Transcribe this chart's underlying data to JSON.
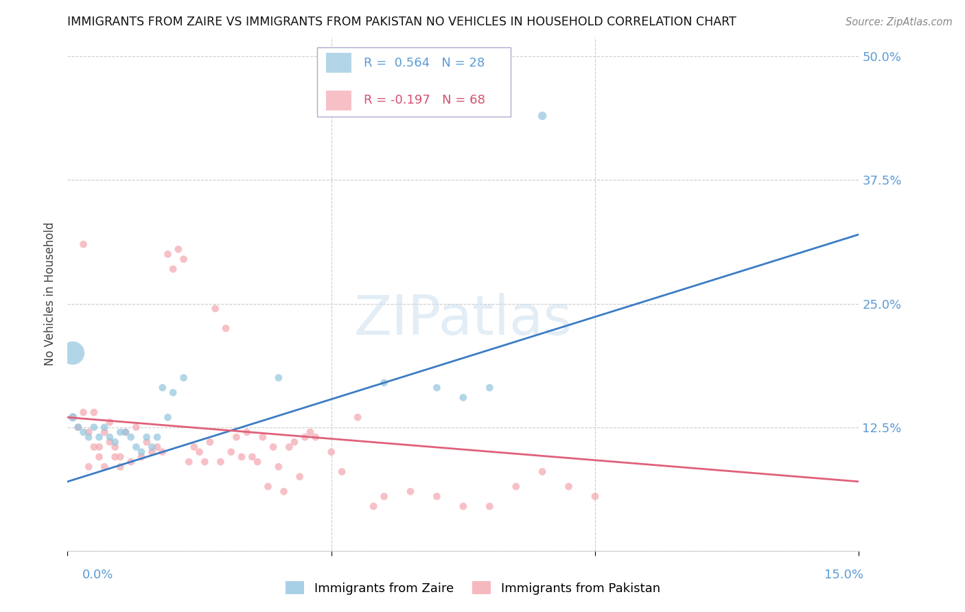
{
  "title": "IMMIGRANTS FROM ZAIRE VS IMMIGRANTS FROM PAKISTAN NO VEHICLES IN HOUSEHOLD CORRELATION CHART",
  "source": "Source: ZipAtlas.com",
  "ylabel": "No Vehicles in Household",
  "yticks": [
    0.0,
    0.125,
    0.25,
    0.375,
    0.5
  ],
  "ytick_labels": [
    "",
    "12.5%",
    "25.0%",
    "37.5%",
    "50.0%"
  ],
  "xlim": [
    0.0,
    0.15
  ],
  "ylim": [
    0.0,
    0.52
  ],
  "zaire_color": "#92c5de",
  "pakistan_color": "#f4a6b0",
  "zaire_line_color": "#3a7cc4",
  "pakistan_line_color": "#e0607a",
  "zaire_R": 0.564,
  "zaire_N": 28,
  "pakistan_R": -0.197,
  "pakistan_N": 68,
  "background_color": "#ffffff",
  "grid_color": "#cccccc",
  "axis_label_color": "#5b9bd5",
  "watermark_color": "#ccdff0",
  "zaire_x": [
    0.001,
    0.002,
    0.003,
    0.004,
    0.005,
    0.006,
    0.007,
    0.008,
    0.009,
    0.01,
    0.011,
    0.012,
    0.013,
    0.014,
    0.015,
    0.016,
    0.017,
    0.018,
    0.019,
    0.02,
    0.022,
    0.04,
    0.06,
    0.07,
    0.075,
    0.08,
    0.09,
    0.001
  ],
  "zaire_y": [
    0.135,
    0.125,
    0.12,
    0.115,
    0.125,
    0.115,
    0.125,
    0.115,
    0.11,
    0.12,
    0.12,
    0.115,
    0.105,
    0.1,
    0.115,
    0.105,
    0.115,
    0.165,
    0.135,
    0.16,
    0.175,
    0.175,
    0.17,
    0.165,
    0.155,
    0.165,
    0.44,
    0.2
  ],
  "zaire_sizes": [
    80,
    60,
    60,
    60,
    60,
    60,
    60,
    60,
    60,
    60,
    60,
    60,
    60,
    60,
    60,
    60,
    60,
    60,
    60,
    60,
    60,
    60,
    60,
    60,
    60,
    60,
    80,
    600
  ],
  "pakistan_x": [
    0.001,
    0.002,
    0.003,
    0.004,
    0.005,
    0.006,
    0.007,
    0.008,
    0.009,
    0.01,
    0.011,
    0.012,
    0.013,
    0.014,
    0.015,
    0.016,
    0.017,
    0.018,
    0.019,
    0.02,
    0.021,
    0.022,
    0.023,
    0.024,
    0.025,
    0.026,
    0.027,
    0.028,
    0.029,
    0.03,
    0.031,
    0.032,
    0.033,
    0.034,
    0.035,
    0.036,
    0.037,
    0.038,
    0.039,
    0.04,
    0.041,
    0.042,
    0.043,
    0.044,
    0.045,
    0.046,
    0.047,
    0.05,
    0.052,
    0.055,
    0.058,
    0.06,
    0.065,
    0.07,
    0.075,
    0.08,
    0.085,
    0.09,
    0.095,
    0.1,
    0.003,
    0.004,
    0.005,
    0.006,
    0.007,
    0.008,
    0.009,
    0.01
  ],
  "pakistan_y": [
    0.135,
    0.125,
    0.14,
    0.12,
    0.14,
    0.105,
    0.12,
    0.13,
    0.105,
    0.095,
    0.12,
    0.09,
    0.125,
    0.095,
    0.11,
    0.1,
    0.105,
    0.1,
    0.3,
    0.285,
    0.305,
    0.295,
    0.09,
    0.105,
    0.1,
    0.09,
    0.11,
    0.245,
    0.09,
    0.225,
    0.1,
    0.115,
    0.095,
    0.12,
    0.095,
    0.09,
    0.115,
    0.065,
    0.105,
    0.085,
    0.06,
    0.105,
    0.11,
    0.075,
    0.115,
    0.12,
    0.115,
    0.1,
    0.08,
    0.135,
    0.045,
    0.055,
    0.06,
    0.055,
    0.045,
    0.045,
    0.065,
    0.08,
    0.065,
    0.055,
    0.31,
    0.085,
    0.105,
    0.095,
    0.085,
    0.11,
    0.095,
    0.085
  ],
  "pakistan_sizes": [
    60,
    60,
    60,
    60,
    60,
    60,
    60,
    60,
    60,
    60,
    60,
    60,
    60,
    60,
    60,
    60,
    60,
    60,
    60,
    60,
    60,
    60,
    60,
    60,
    60,
    60,
    60,
    60,
    60,
    60,
    60,
    60,
    60,
    60,
    60,
    60,
    60,
    60,
    60,
    60,
    60,
    60,
    60,
    60,
    60,
    60,
    60,
    60,
    60,
    60,
    60,
    60,
    60,
    60,
    60,
    60,
    60,
    60,
    60,
    60,
    60,
    60,
    60,
    60,
    60,
    60,
    60,
    60
  ],
  "zaire_line_x0": 0.0,
  "zaire_line_y0": 0.07,
  "zaire_line_x1": 0.15,
  "zaire_line_y1": 0.32,
  "pakistan_line_x0": 0.0,
  "pakistan_line_y0": 0.135,
  "pakistan_line_x1": 0.15,
  "pakistan_line_y1": 0.07
}
